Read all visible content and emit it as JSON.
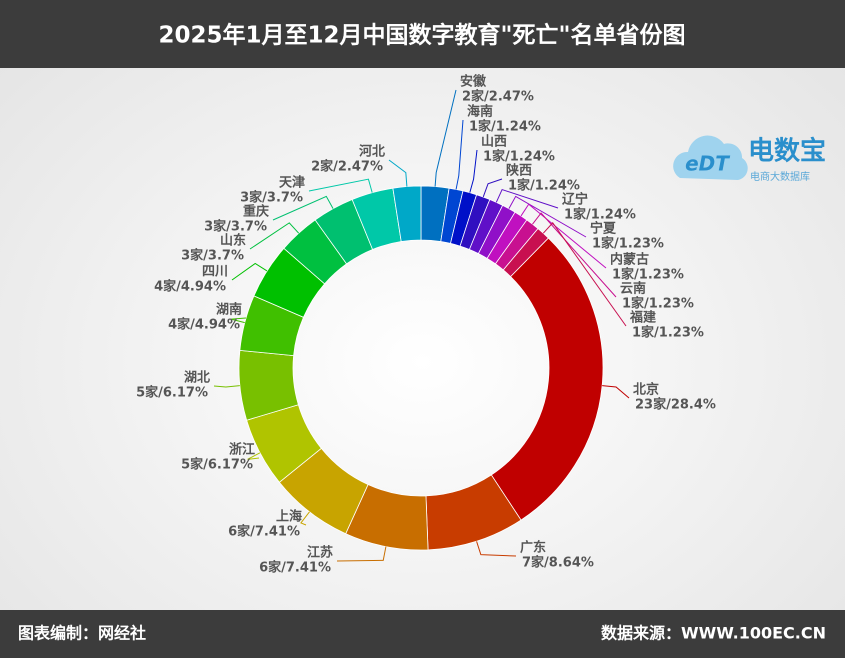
{
  "chart_data": {
    "type": "donut",
    "title": "2025年1月至12月中国数字教育\"死亡\"名单省份图",
    "categories": [
      "安徽",
      "海南",
      "山西",
      "陕西",
      "辽宁",
      "宁夏",
      "内蒙古",
      "云南",
      "福建",
      "北京",
      "广东",
      "江苏",
      "上海",
      "浙江",
      "湖北",
      "湖南",
      "四川",
      "山东",
      "重庆",
      "天津",
      "河北"
    ],
    "values": [
      2,
      1,
      1,
      1,
      1,
      1,
      1,
      1,
      1,
      23,
      7,
      6,
      6,
      5,
      5,
      4,
      4,
      3,
      3,
      3,
      2
    ],
    "value_labels": [
      "2家/2.47%",
      "1家/1.24%",
      "1家/1.24%",
      "1家/1.24%",
      "1家/1.24%",
      "1家/1.23%",
      "1家/1.23%",
      "1家/1.23%",
      "1家/1.23%",
      "23家/28.4%",
      "7家/8.64%",
      "6家/7.41%",
      "6家/7.41%",
      "5家/6.17%",
      "5家/6.17%",
      "4家/4.94%",
      "4家/4.94%",
      "3家/3.7%",
      "3家/3.7%",
      "3家/3.7%",
      "2家/2.47%"
    ],
    "colors": [
      "#0070c0",
      "#0046d2",
      "#0010c8",
      "#3010c0",
      "#6010c8",
      "#9010c8",
      "#c010c0",
      "#c81090",
      "#c81050",
      "#c00000",
      "#c83c00",
      "#c86e00",
      "#c8a400",
      "#b0c400",
      "#78c000",
      "#40c000",
      "#00c000",
      "#00c040",
      "#00c070",
      "#00c8a8",
      "#00a8c8"
    ]
  },
  "footer": {
    "left": "图表编制：网经社",
    "right": "数据来源：WWW.100EC.CN"
  },
  "logo": {
    "mark": "eDT",
    "name": "电数宝",
    "tagline": "电商大数据库"
  }
}
